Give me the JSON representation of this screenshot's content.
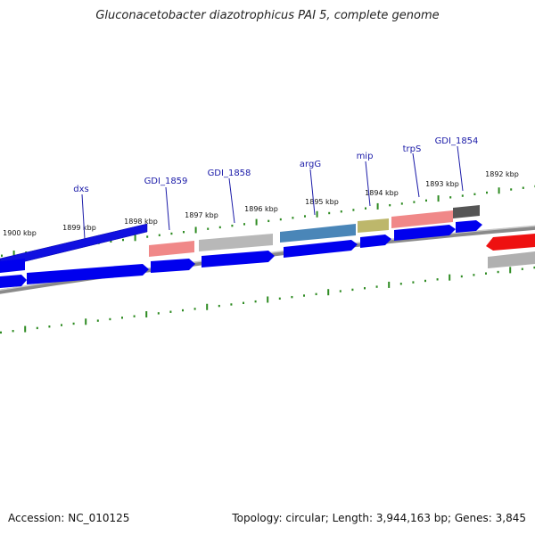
{
  "title": "Gluconacetobacter diazotrophicus PAI 5, complete genome",
  "footer": {
    "accession": "Accession: NC_010125",
    "topology": "Topology: circular; Length: 3,944,163 bp; Genes: 3,845"
  },
  "ruler_labels": [
    "1900 kbp",
    "1899 kbp",
    "1898 kbp",
    "1897 kbp",
    "1896 kbp",
    "1895 kbp",
    "1894 kbp",
    "1893 kbp",
    "1892 kbp"
  ],
  "gene_labels": [
    "dxs",
    "GDI_1859",
    "GDI_1858",
    "argG",
    "mip",
    "trpS",
    "GDI_1854"
  ],
  "colors": {
    "tick": "#2e8b22",
    "cds": "#0000ee",
    "label": "#1a1aa8",
    "backbone": "#8a8a8a",
    "pink": "#f08080",
    "gray_gene": "#b0b0b0",
    "steel": "#4682b4",
    "khaki": "#bdb76b",
    "dark": "#444444",
    "red": "#ee0000"
  }
}
